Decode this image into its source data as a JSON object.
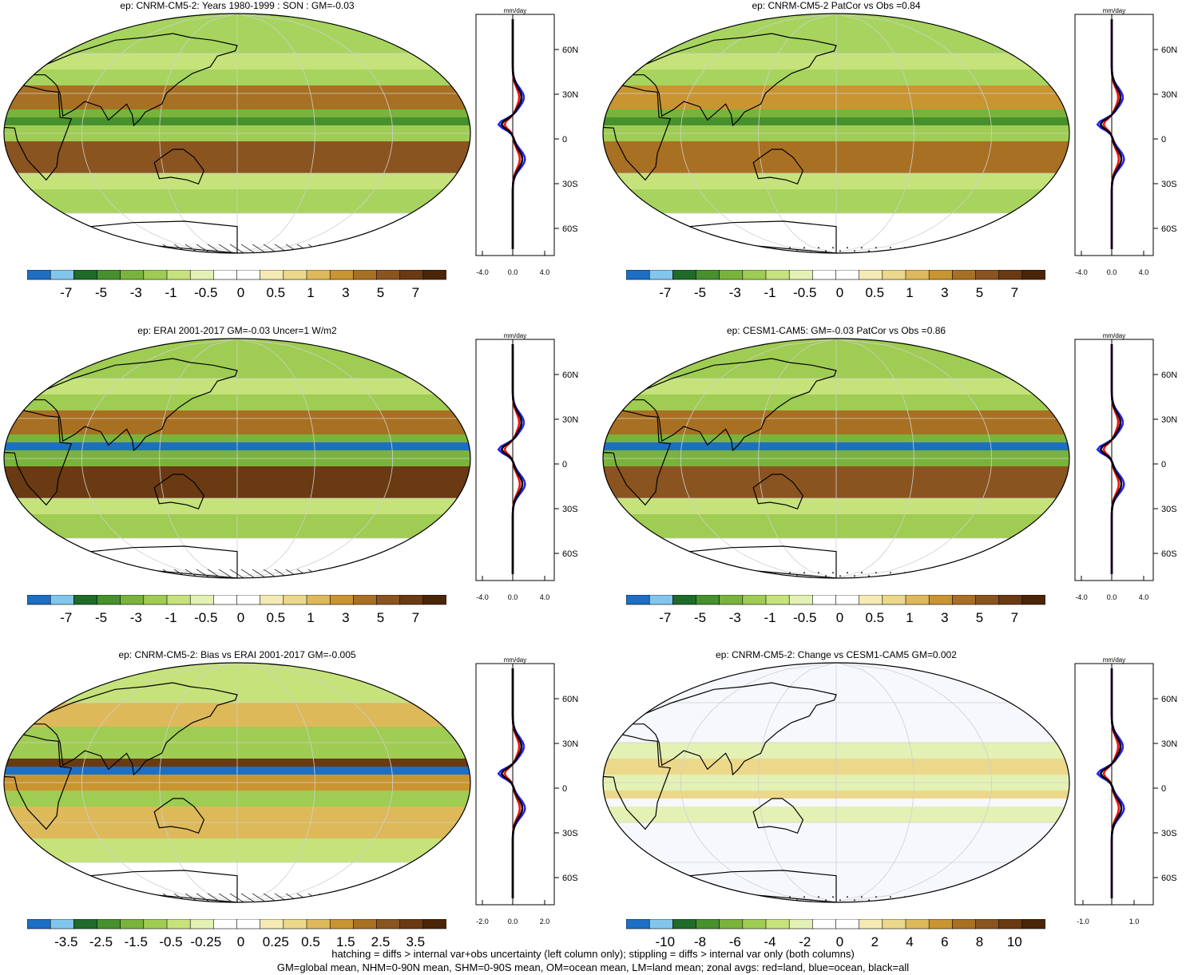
{
  "panels": [
    {
      "title": "ep: CNRM-CM5-2: Years 1980-1999 : SON : GM=-0.03",
      "profile_units": "mm/day",
      "lat_ticks": [
        "60N",
        "30N",
        "0",
        "30S",
        "60S"
      ],
      "x_ticks": [
        "-4.0",
        "0.0",
        "4.0"
      ],
      "colorbar_labels": [
        "-7",
        "-5",
        "-3",
        "-1",
        "-0.5",
        "0",
        "0.5",
        "1",
        "3",
        "5",
        "7"
      ],
      "pattern": "hatch"
    },
    {
      "title": "ep: CNRM-CM5-2 PatCor vs Obs =0.84",
      "profile_units": "mm/day",
      "lat_ticks": [
        "60N",
        "30N",
        "0",
        "30S",
        "60S"
      ],
      "x_ticks": [
        "-4.0",
        "0.0",
        "4.0"
      ],
      "colorbar_labels": [
        "-7",
        "-5",
        "-3",
        "-1",
        "-0.5",
        "0",
        "0.5",
        "1",
        "3",
        "5",
        "7"
      ],
      "pattern": "stipple"
    },
    {
      "title": "ep: ERAI 2001-2017 GM=-0.03 Uncer=1 W/m2",
      "profile_units": "mm/day",
      "lat_ticks": [
        "60N",
        "30N",
        "0",
        "30S",
        "60S"
      ],
      "x_ticks": [
        "-4.0",
        "0.0",
        "4.0"
      ],
      "colorbar_labels": [
        "-7",
        "-5",
        "-3",
        "-1",
        "-0.5",
        "0",
        "0.5",
        "1",
        "3",
        "5",
        "7"
      ],
      "pattern": "hatch"
    },
    {
      "title": "ep: CESM1-CAM5: GM=-0.03 PatCor vs Obs =0.86",
      "profile_units": "mm/day",
      "lat_ticks": [
        "60N",
        "30N",
        "0",
        "30S",
        "60S"
      ],
      "x_ticks": [
        "-4.0",
        "0.0",
        "4.0"
      ],
      "colorbar_labels": [
        "-7",
        "-5",
        "-3",
        "-1",
        "-0.5",
        "0",
        "0.5",
        "1",
        "3",
        "5",
        "7"
      ],
      "pattern": "stipple"
    },
    {
      "title": "ep: CNRM-CM5-2: Bias vs ERAI 2001-2017  GM=-0.005",
      "profile_units": "mm/day",
      "lat_ticks": [
        "60N",
        "30N",
        "0",
        "30S",
        "60S"
      ],
      "x_ticks": [
        "-2.0",
        "0.0",
        "2.0"
      ],
      "colorbar_labels": [
        "-3.5",
        "-2.5",
        "-1.5",
        "-0.5",
        "-0.25",
        "0",
        "0.25",
        "0.5",
        "1.5",
        "2.5",
        "3.5"
      ],
      "pattern": "hatch"
    },
    {
      "title": "ep: CNRM-CM5-2: Change vs CESM1-CAM5 GM=0.002",
      "profile_units": "mm/day",
      "lat_ticks": [
        "60N",
        "30N",
        "0",
        "30S",
        "60S"
      ],
      "x_ticks": [
        "-1.0",
        "1.0"
      ],
      "colorbar_labels": [
        "-10",
        "-8",
        "-6",
        "-4",
        "-2",
        "0",
        "2",
        "4",
        "6",
        "8",
        "10"
      ],
      "pattern": "stipple"
    }
  ],
  "colorbar_colors": [
    "#1c6fc4",
    "#82c6ee",
    "#1f6b2a",
    "#46902e",
    "#79b33b",
    "#9fcc52",
    "#c5e37a",
    "#e3f1b4",
    "#ffffff",
    "#ffffff",
    "#f5eab4",
    "#ecd88b",
    "#ddb95a",
    "#c99531",
    "#a87022",
    "#8a5420",
    "#6a3a12",
    "#4a2508"
  ],
  "caption": {
    "line1": "hatching = diffs > internal var+obs uncertainty (left column only); stippling = diffs > internal var only (both columns)",
    "line2": "GM=global mean, NHM=0-90N mean, SHM=0-90S mean, OM=ocean mean, LM=land mean; zonal avgs: red=land, blue=ocean, black=all"
  }
}
